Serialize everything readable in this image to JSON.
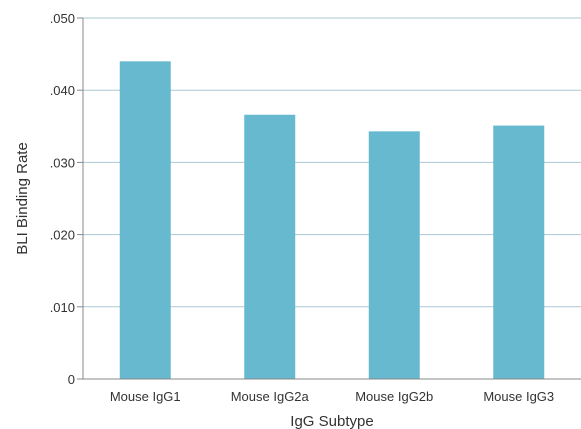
{
  "chart_data": {
    "type": "bar",
    "categories": [
      "Mouse IgG1",
      "Mouse IgG2a",
      "Mouse IgG2b",
      "Mouse IgG3"
    ],
    "values": [
      0.044,
      0.0366,
      0.0343,
      0.0351
    ],
    "ylim": [
      0,
      0.05
    ],
    "yticks": [
      0,
      0.01,
      0.02,
      0.03,
      0.04,
      0.05
    ],
    "ytick_labels": [
      "0",
      ".010",
      ".020",
      ".030",
      ".040",
      ".050"
    ],
    "xlabel": "IgG Subtype",
    "ylabel": "BLI Binding Rate",
    "grid": true,
    "legend": false,
    "bar_color": "#67b9cf",
    "grid_color": "#a9c9d6",
    "axis_color": "#888888"
  }
}
